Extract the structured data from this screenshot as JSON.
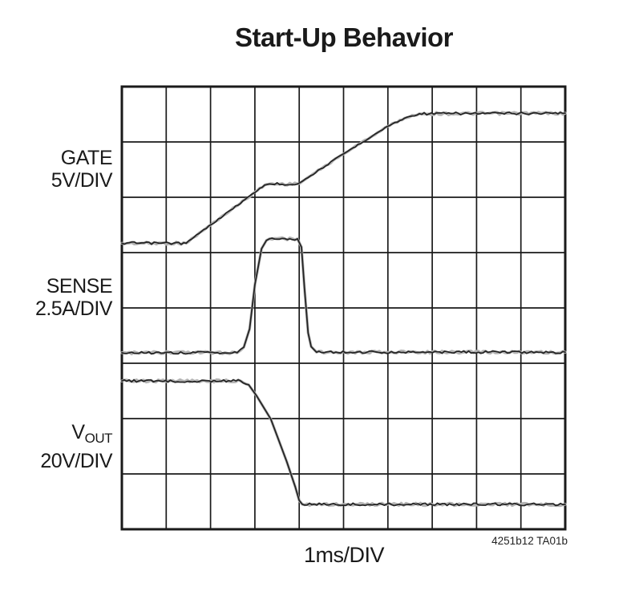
{
  "title": "Start-Up Behavior",
  "x_axis_label": "1ms/DIV",
  "figure_id": "4251b12 TA01b",
  "labels": {
    "gate": {
      "line1": "GATE",
      "line2": "5V/DIV"
    },
    "sense": {
      "line1": "SENSE",
      "line2": "2.5A/DIV"
    },
    "vout": {
      "main": "V",
      "sub": "OUT",
      "line2": "20V/DIV"
    }
  },
  "colors": {
    "background": "#ffffff",
    "grid": "#1a1a1a",
    "trace": "#242424",
    "trace_halo": "#b4b4b4",
    "text": "#1a1a1a"
  },
  "chart_data": {
    "type": "line",
    "title": "Start-Up Behavior",
    "xlabel": "1ms/DIV",
    "x_divisions": 10,
    "y_divisions": 8,
    "x_scale_per_div": "1ms",
    "y_units_note": "y values are graticule divisions measured from the top edge of the 10x8 scope grid",
    "grid": true,
    "series": [
      {
        "name": "GATE",
        "scale_per_div": "5V",
        "label": "GATE 5V/DIV",
        "points": [
          [
            0.0,
            2.83
          ],
          [
            1.45,
            2.83
          ],
          [
            1.63,
            2.72
          ],
          [
            3.22,
            1.78
          ],
          [
            3.33,
            1.76
          ],
          [
            3.96,
            1.76
          ],
          [
            4.09,
            1.7
          ],
          [
            4.99,
            1.22
          ],
          [
            5.99,
            0.72
          ],
          [
            6.38,
            0.57
          ],
          [
            6.71,
            0.49
          ],
          [
            10.0,
            0.48
          ]
        ]
      },
      {
        "name": "SENSE",
        "scale_per_div": "2.5A",
        "label": "SENSE 2.5A/DIV",
        "points": [
          [
            0.0,
            4.81
          ],
          [
            2.6,
            4.81
          ],
          [
            2.75,
            4.71
          ],
          [
            2.88,
            4.38
          ],
          [
            3.0,
            3.58
          ],
          [
            3.15,
            2.93
          ],
          [
            3.26,
            2.78
          ],
          [
            3.33,
            2.75
          ],
          [
            3.96,
            2.75
          ],
          [
            4.05,
            2.9
          ],
          [
            4.12,
            3.65
          ],
          [
            4.2,
            4.45
          ],
          [
            4.27,
            4.7
          ],
          [
            4.39,
            4.8
          ],
          [
            10.0,
            4.8
          ]
        ]
      },
      {
        "name": "VOUT",
        "scale_per_div": "20V",
        "label": "VOUT 20V/DIV",
        "points": [
          [
            0.0,
            5.32
          ],
          [
            2.68,
            5.32
          ],
          [
            2.86,
            5.39
          ],
          [
            3.04,
            5.59
          ],
          [
            3.36,
            6.01
          ],
          [
            3.72,
            6.78
          ],
          [
            3.91,
            7.23
          ],
          [
            4.0,
            7.48
          ],
          [
            4.07,
            7.55
          ],
          [
            10.0,
            7.55
          ]
        ]
      }
    ]
  }
}
